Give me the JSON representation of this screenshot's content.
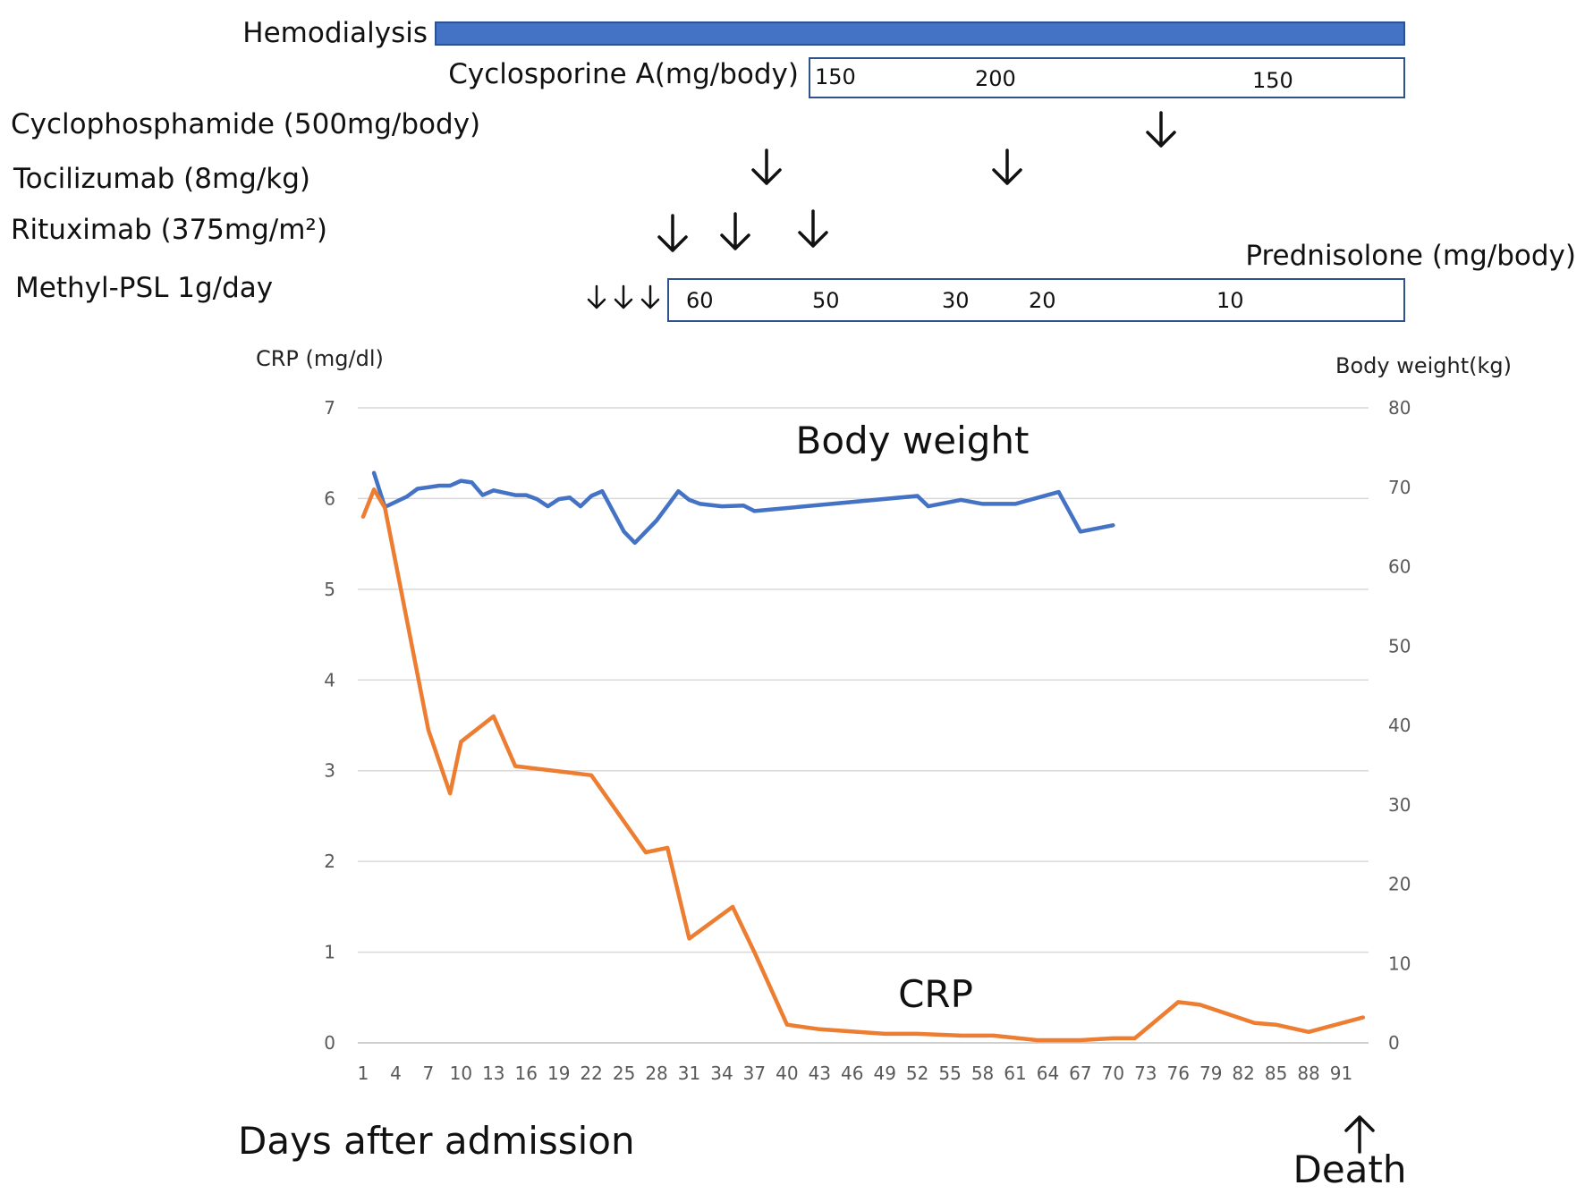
{
  "treatments": {
    "hemodialysis": {
      "label": "Hemodialysis",
      "color": "#4472C4"
    },
    "cyclosporine": {
      "label": "Cyclosporine A(mg/body)",
      "doses": [
        "150",
        "200",
        "150"
      ]
    },
    "cyclophosphamide": {
      "label": "Cyclophosphamide (500mg/body)"
    },
    "tocilizumab": {
      "label": "Tocilizumab (8mg/kg)"
    },
    "rituximab": {
      "label": "Rituximab (375mg/m²)"
    },
    "methylpsl": {
      "label": "Methyl-PSL 1g/day"
    },
    "prednisolone": {
      "label": "Prednisolone (mg/body)",
      "doses": [
        "60",
        "50",
        "30",
        "20",
        "10"
      ]
    }
  },
  "annotations": {
    "body_weight": "Body weight",
    "crp": "CRP",
    "days_after_admission": "Days after admission",
    "death": "Death",
    "death_arrow": "↑",
    "dose_arrow": "↓"
  },
  "chart_data": {
    "type": "line",
    "xlabel": "Days after admission",
    "ylabel_left": "CRP (mg/dl)",
    "ylabel_right": "Body weight(kg)",
    "ylim_left": [
      0,
      7
    ],
    "ylim_right": [
      0,
      80
    ],
    "xlim": [
      1,
      93
    ],
    "grid": true,
    "x_ticks": [
      1,
      4,
      7,
      10,
      13,
      16,
      19,
      22,
      25,
      28,
      31,
      34,
      37,
      40,
      43,
      46,
      49,
      52,
      55,
      58,
      61,
      64,
      67,
      70,
      73,
      76,
      79,
      82,
      85,
      88,
      91
    ],
    "y_ticks_left": [
      0,
      1,
      2,
      3,
      4,
      5,
      6,
      7
    ],
    "y_ticks_right": [
      0,
      10,
      20,
      30,
      40,
      50,
      60,
      70,
      80
    ],
    "series": [
      {
        "name": "Body weight",
        "axis": "right",
        "color": "#4472C4",
        "points": [
          [
            2,
            71.8
          ],
          [
            3,
            67.5
          ],
          [
            5,
            68.8
          ],
          [
            6,
            69.8
          ],
          [
            7,
            70.0
          ],
          [
            8,
            70.2
          ],
          [
            9,
            70.2
          ],
          [
            10,
            70.8
          ],
          [
            11,
            70.6
          ],
          [
            12,
            69.0
          ],
          [
            13,
            69.6
          ],
          [
            15,
            69.0
          ],
          [
            16,
            69.0
          ],
          [
            17,
            68.5
          ],
          [
            18,
            67.6
          ],
          [
            19,
            68.5
          ],
          [
            20,
            68.7
          ],
          [
            21,
            67.6
          ],
          [
            22,
            68.9
          ],
          [
            23,
            69.5
          ],
          [
            25,
            64.4
          ],
          [
            26,
            63.0
          ],
          [
            28,
            65.8
          ],
          [
            30,
            69.5
          ],
          [
            31,
            68.4
          ],
          [
            32,
            67.9
          ],
          [
            34,
            67.6
          ],
          [
            36,
            67.7
          ],
          [
            37,
            67.0
          ],
          [
            52,
            68.9
          ],
          [
            53,
            67.6
          ],
          [
            56,
            68.4
          ],
          [
            58,
            67.9
          ],
          [
            61,
            67.9
          ],
          [
            65,
            69.4
          ],
          [
            67,
            64.4
          ],
          [
            70,
            65.2
          ]
        ]
      },
      {
        "name": "CRP",
        "axis": "left",
        "color": "#ED7D31",
        "points": [
          [
            1,
            5.8
          ],
          [
            2,
            6.1
          ],
          [
            3,
            5.9
          ],
          [
            7,
            3.45
          ],
          [
            9,
            2.75
          ],
          [
            10,
            3.32
          ],
          [
            13,
            3.6
          ],
          [
            15,
            3.05
          ],
          [
            22,
            2.95
          ],
          [
            27,
            2.1
          ],
          [
            29,
            2.15
          ],
          [
            31,
            1.15
          ],
          [
            35,
            1.5
          ],
          [
            37,
            1.0
          ],
          [
            40,
            0.2
          ],
          [
            43,
            0.15
          ],
          [
            49,
            0.1
          ],
          [
            52,
            0.1
          ],
          [
            56,
            0.08
          ],
          [
            59,
            0.08
          ],
          [
            63,
            0.03
          ],
          [
            67,
            0.03
          ],
          [
            70,
            0.05
          ],
          [
            72,
            0.05
          ],
          [
            76,
            0.45
          ],
          [
            78,
            0.42
          ],
          [
            83,
            0.22
          ],
          [
            85,
            0.2
          ],
          [
            88,
            0.12
          ],
          [
            93,
            0.28
          ]
        ]
      }
    ]
  }
}
